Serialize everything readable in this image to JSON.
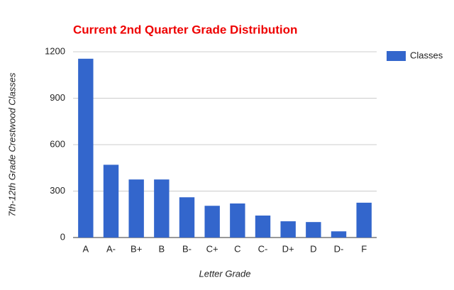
{
  "chart_data": {
    "type": "bar",
    "title": "Current 2nd Quarter Grade Distribution",
    "x_label": "Letter Grade",
    "y_label": "7th-12th Grade Crestwood Classes",
    "categories": [
      "A",
      "A-",
      "B+",
      "B",
      "B-",
      "C+",
      "C",
      "C-",
      "D+",
      "D",
      "D-",
      "F"
    ],
    "series": [
      {
        "name": "Classes",
        "color": "#3366cc",
        "values": [
          1155,
          470,
          375,
          375,
          260,
          205,
          220,
          142,
          105,
          100,
          40,
          225
        ]
      }
    ],
    "ylim": [
      0,
      1200
    ],
    "yticks": [
      0,
      300,
      600,
      900,
      1200
    ],
    "grid": true,
    "legend": "right"
  }
}
